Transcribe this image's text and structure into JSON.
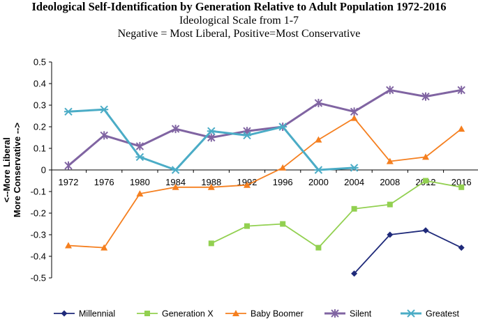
{
  "chart_data": {
    "type": "line",
    "title": "Ideological Self-Identification by Generation Relative to Adult Population 1972-2016",
    "subtitles": [
      "Ideological Scale from 1-7",
      "Negative = Most Liberal, Positive=Most Conservative"
    ],
    "ylabel_lines": [
      "<--More Liberal",
      "More Conservative -->"
    ],
    "xlabel": "",
    "ylim": [
      -0.5,
      0.5
    ],
    "yticks": [
      0.5,
      0.4,
      0.3,
      0.2,
      0.1,
      0,
      -0.1,
      -0.2,
      -0.3,
      -0.4,
      -0.5
    ],
    "ytick_labels": [
      "0.5",
      "0.4",
      "0.3",
      "0.2",
      "0.1",
      "0",
      "-0.1",
      "-0.2",
      "-0.3",
      "-0.4",
      "-0.5"
    ],
    "x": [
      "1972",
      "1976",
      "1980",
      "1984",
      "1988",
      "1992",
      "1996",
      "2000",
      "2004",
      "2008",
      "2012",
      "2016"
    ],
    "grid": false,
    "legend_position": "bottom",
    "series": [
      {
        "name": "Millennial",
        "color": "#1f2a7a",
        "marker": "diamond",
        "values": [
          null,
          null,
          null,
          null,
          null,
          null,
          null,
          null,
          -0.48,
          -0.3,
          -0.28,
          -0.36
        ]
      },
      {
        "name": "Generation X",
        "color": "#92d050",
        "marker": "square",
        "values": [
          null,
          null,
          null,
          null,
          -0.34,
          -0.26,
          -0.25,
          -0.36,
          -0.18,
          -0.16,
          -0.05,
          -0.08
        ]
      },
      {
        "name": "Baby Boomer",
        "color": "#f57f1f",
        "marker": "triangle",
        "values": [
          -0.35,
          -0.36,
          -0.11,
          -0.08,
          -0.08,
          -0.07,
          0.01,
          0.14,
          0.24,
          0.04,
          0.06,
          0.19
        ]
      },
      {
        "name": "Silent",
        "color": "#8064a2",
        "marker": "star",
        "values": [
          0.02,
          0.16,
          0.11,
          0.19,
          0.15,
          0.18,
          0.2,
          0.31,
          0.27,
          0.37,
          0.34,
          0.37
        ]
      },
      {
        "name": "Greatest",
        "color": "#4bacc6",
        "marker": "asterisk",
        "values": [
          0.27,
          0.28,
          0.06,
          0.0,
          0.18,
          0.16,
          0.2,
          0.0,
          0.01,
          null,
          null,
          null
        ]
      }
    ]
  }
}
